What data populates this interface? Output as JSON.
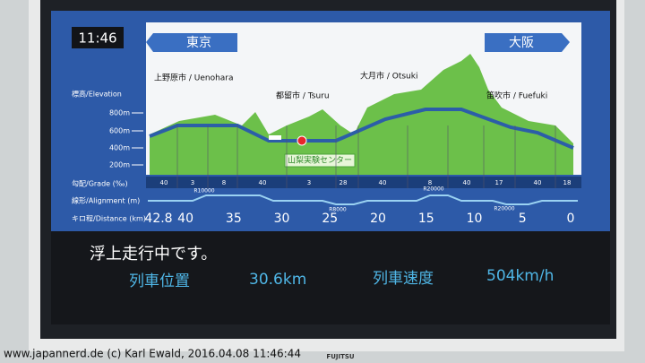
{
  "screen": {
    "clock": "11:46",
    "from": "東京",
    "to": "大阪",
    "cities": [
      "上野原市 / Uenohara",
      "都留市 / Tsuru",
      "大月市 / Otsuki",
      "笛吹市 / Fuefuki"
    ],
    "elevation_label": "標高/Elevation",
    "elevation_ticks": [
      "800m",
      "600m",
      "400m",
      "200m"
    ],
    "station": "山梨実験センター",
    "grade_label": "勾配/Grade (‰)",
    "grades": [
      "40",
      "3",
      "8",
      "40",
      "3",
      "28",
      "40",
      "8",
      "40",
      "17",
      "40",
      "18"
    ],
    "alignment_label": "線形/Alignment (m)",
    "alignments": [
      "R10000",
      "R8000",
      "R20000",
      "R20000"
    ],
    "distance_label": "キロ程/Distance (km)",
    "distances": [
      42.8,
      40,
      35,
      30,
      25,
      20,
      15,
      10,
      5,
      0
    ],
    "status": "浮上走行中です。",
    "position_label": "列車位置",
    "position": "30.6km",
    "speed_label": "列車速度",
    "speed": "504km/h"
  },
  "brand": "FUJITSU",
  "watermark": "www.japannerd.de (c) Karl Ewald, 2016.04.08 11:46:44"
}
